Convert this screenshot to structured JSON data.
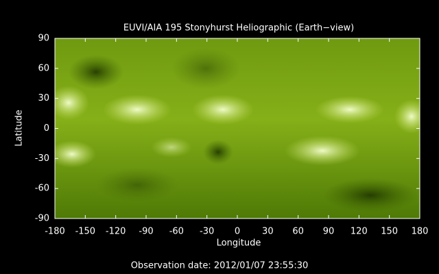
{
  "chart_data": {
    "type": "image",
    "title": "EUVI/AIA 195 Stonyhurst Heliographic (Earth−view)",
    "xlabel": "Longitude",
    "ylabel": "Latitude",
    "xlim": [
      -180,
      180
    ],
    "ylim": [
      -90,
      90
    ],
    "xticks": [
      -180,
      -150,
      -120,
      -90,
      -60,
      -30,
      0,
      30,
      60,
      90,
      120,
      150,
      180
    ],
    "yticks": [
      -90,
      -60,
      -30,
      0,
      30,
      60,
      90
    ],
    "footer": "Observation date: 2012/01/07 23:55:30"
  }
}
